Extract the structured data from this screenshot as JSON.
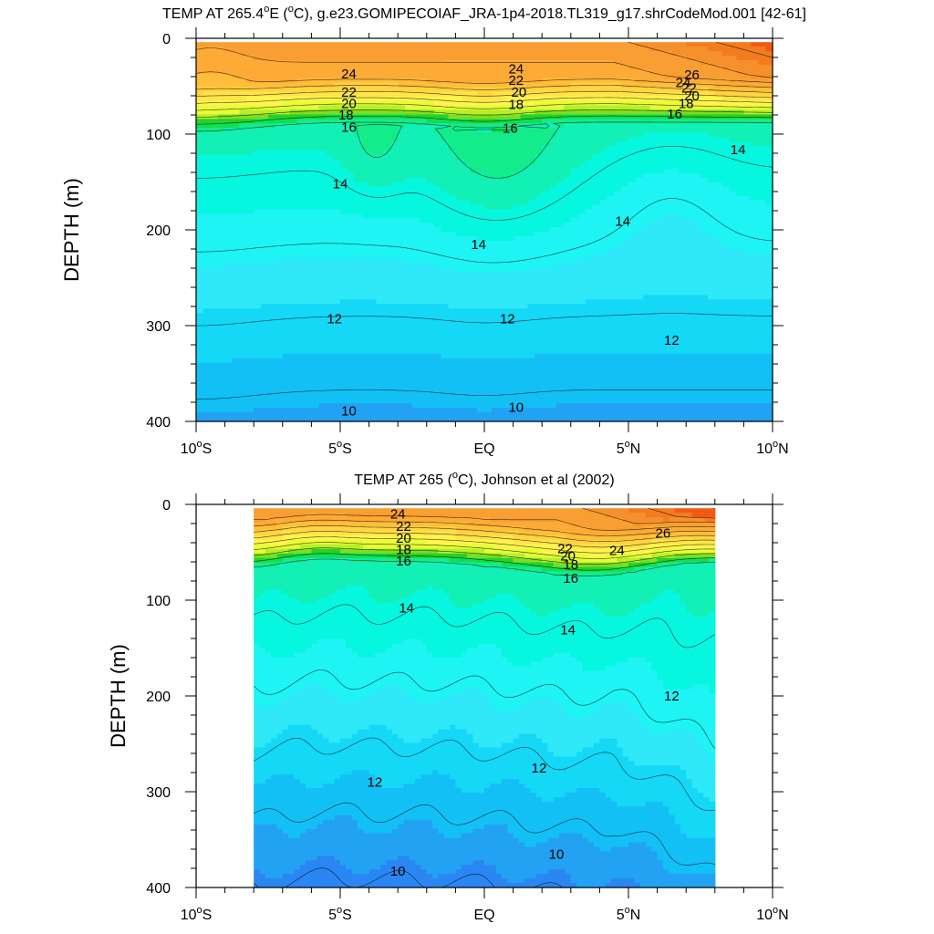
{
  "chart_data": [
    {
      "type": "contour",
      "title": "TEMP AT 265.4°E (°C), g.e23.GOMIPECOIAF_JRA-1p4-2018.TL319_g17.shrCodeMod.001 [42-61]",
      "title_parts": {
        "pre": "TEMP AT 265.4",
        "sup1": "o",
        "mid": "E (",
        "sup2": "o",
        "post": "C), g.e23.GOMIPECOIAF_JRA-1p4-2018.TL319_g17.shrCodeMod.001 [42-61]"
      },
      "ylabel": "DEPTH (m)",
      "xlim": [
        -10,
        10
      ],
      "ylim": [
        400,
        0
      ],
      "y_ticks": [
        "0",
        "100",
        "200",
        "300",
        "400"
      ],
      "x_ticks": [
        {
          "value": -10,
          "num": "10",
          "hemi": "S"
        },
        {
          "value": -5,
          "num": "5",
          "hemi": "S"
        },
        {
          "value": 0,
          "num": "EQ",
          "hemi": ""
        },
        {
          "value": 5,
          "num": "5",
          "hemi": "N"
        },
        {
          "value": 10,
          "num": "10",
          "hemi": "N"
        }
      ],
      "data_lon_range": [
        -10,
        10
      ],
      "contour_interval": 1,
      "contour_labels": [
        {
          "text": "24",
          "lat": -4.7,
          "depth": 37
        },
        {
          "text": "22",
          "lat": -4.7,
          "depth": 56
        },
        {
          "text": "20",
          "lat": -4.7,
          "depth": 68
        },
        {
          "text": "18",
          "lat": -4.8,
          "depth": 80
        },
        {
          "text": "16",
          "lat": -4.7,
          "depth": 93
        },
        {
          "text": "24",
          "lat": 1.1,
          "depth": 32
        },
        {
          "text": "22",
          "lat": 1.1,
          "depth": 44
        },
        {
          "text": "20",
          "lat": 1.2,
          "depth": 56
        },
        {
          "text": "18",
          "lat": 1.1,
          "depth": 69
        },
        {
          "text": "16",
          "lat": 0.9,
          "depth": 94
        },
        {
          "text": "26",
          "lat": 7.2,
          "depth": 38
        },
        {
          "text": "24",
          "lat": 6.9,
          "depth": 46
        },
        {
          "text": "22",
          "lat": 7.1,
          "depth": 52
        },
        {
          "text": "20",
          "lat": 7.2,
          "depth": 60
        },
        {
          "text": "18",
          "lat": 7.0,
          "depth": 68
        },
        {
          "text": "16",
          "lat": 6.6,
          "depth": 79
        },
        {
          "text": "14",
          "lat": 8.8,
          "depth": 116
        },
        {
          "text": "14",
          "lat": -5.0,
          "depth": 152
        },
        {
          "text": "14",
          "lat": 4.8,
          "depth": 191
        },
        {
          "text": "14",
          "lat": -0.2,
          "depth": 215
        },
        {
          "text": "12",
          "lat": -5.2,
          "depth": 293
        },
        {
          "text": "12",
          "lat": 0.8,
          "depth": 293
        },
        {
          "text": "12",
          "lat": 6.5,
          "depth": 315
        },
        {
          "text": "10",
          "lat": -4.7,
          "depth": 389
        },
        {
          "text": "10",
          "lat": 1.1,
          "depth": 385
        }
      ]
    },
    {
      "type": "contour",
      "title": "TEMP AT 265 (°C), Johnson et al (2002)",
      "title_parts": {
        "pre": "TEMP AT 265 (",
        "sup1": "o",
        "mid": "",
        "sup2": "",
        "post": "C), Johnson et al (2002)"
      },
      "ylabel": "DEPTH (m)",
      "xlim": [
        -10,
        10
      ],
      "ylim": [
        400,
        0
      ],
      "y_ticks": [
        "0",
        "100",
        "200",
        "300",
        "400"
      ],
      "x_ticks": [
        {
          "value": -10,
          "num": "10",
          "hemi": "S"
        },
        {
          "value": -5,
          "num": "5",
          "hemi": "S"
        },
        {
          "value": 0,
          "num": "EQ",
          "hemi": ""
        },
        {
          "value": 5,
          "num": "5",
          "hemi": "N"
        },
        {
          "value": 10,
          "num": "10",
          "hemi": "N"
        }
      ],
      "data_lon_range": [
        -8,
        8
      ],
      "contour_interval": 1,
      "contour_labels": [
        {
          "text": "24",
          "lat": -3.0,
          "depth": 10
        },
        {
          "text": "22",
          "lat": -2.8,
          "depth": 23
        },
        {
          "text": "20",
          "lat": -2.8,
          "depth": 35
        },
        {
          "text": "18",
          "lat": -2.8,
          "depth": 47
        },
        {
          "text": "16",
          "lat": -2.8,
          "depth": 59
        },
        {
          "text": "22",
          "lat": 2.8,
          "depth": 46
        },
        {
          "text": "20",
          "lat": 2.9,
          "depth": 54
        },
        {
          "text": "18",
          "lat": 3.0,
          "depth": 63
        },
        {
          "text": "16",
          "lat": 3.0,
          "depth": 77
        },
        {
          "text": "24",
          "lat": 4.6,
          "depth": 48
        },
        {
          "text": "26",
          "lat": 6.2,
          "depth": 30
        },
        {
          "text": "14",
          "lat": -2.7,
          "depth": 108
        },
        {
          "text": "14",
          "lat": 2.9,
          "depth": 131
        },
        {
          "text": "12",
          "lat": 6.5,
          "depth": 200
        },
        {
          "text": "12",
          "lat": 1.9,
          "depth": 275
        },
        {
          "text": "12",
          "lat": -3.8,
          "depth": 290
        },
        {
          "text": "10",
          "lat": -3.0,
          "depth": 383
        },
        {
          "text": "10",
          "lat": 2.5,
          "depth": 365
        }
      ]
    }
  ]
}
